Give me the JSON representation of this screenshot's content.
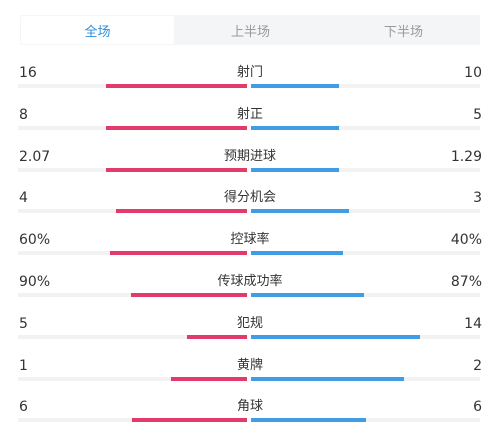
{
  "colors": {
    "home": "#e23a6b",
    "away": "#3f9de6",
    "active_tab": "#2b8fdc"
  },
  "tabs": [
    {
      "label": "全场",
      "active": true
    },
    {
      "label": "上半场",
      "active": false
    },
    {
      "label": "下半场",
      "active": false
    }
  ],
  "stats": [
    {
      "label": "射门",
      "home": "16",
      "away": "10",
      "home_share": 0.615,
      "away_share": 0.385
    },
    {
      "label": "射正",
      "home": "8",
      "away": "5",
      "home_share": 0.615,
      "away_share": 0.385
    },
    {
      "label": "预期进球",
      "home": "2.07",
      "away": "1.29",
      "home_share": 0.616,
      "away_share": 0.384
    },
    {
      "label": "得分机会",
      "home": "4",
      "away": "3",
      "home_share": 0.571,
      "away_share": 0.429
    },
    {
      "label": "控球率",
      "home": "60%",
      "away": "40%",
      "home_share": 0.6,
      "away_share": 0.4
    },
    {
      "label": "传球成功率",
      "home": "90%",
      "away": "87%",
      "home_share": 0.508,
      "away_share": 0.492
    },
    {
      "label": "犯规",
      "home": "5",
      "away": "14",
      "home_share": 0.263,
      "away_share": 0.737
    },
    {
      "label": "黄牌",
      "home": "1",
      "away": "2",
      "home_share": 0.333,
      "away_share": 0.667
    },
    {
      "label": "角球",
      "home": "6",
      "away": "6",
      "home_share": 0.5,
      "away_share": 0.5
    }
  ]
}
